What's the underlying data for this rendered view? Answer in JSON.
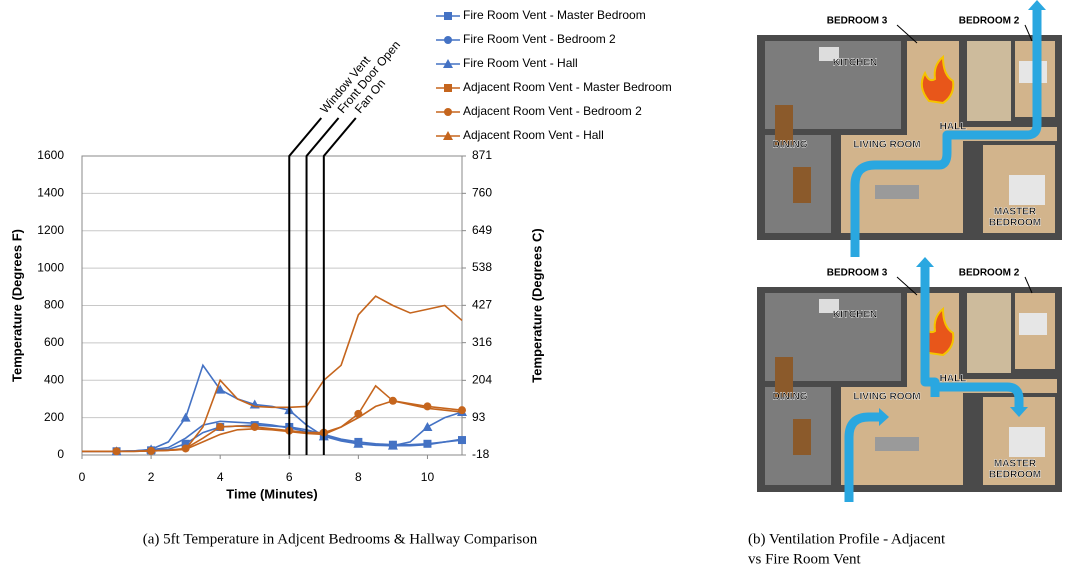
{
  "chart_data": {
    "type": "line",
    "xlabel": "Time (Minutes)",
    "ylabel": "Temperature (Degrees F)",
    "y2label": "Temperature (Degrees C)",
    "x": [
      0,
      0.5,
      1,
      1.5,
      2,
      2.5,
      3,
      3.5,
      4,
      4.5,
      5,
      5.5,
      6,
      6.5,
      7,
      7.5,
      8,
      8.5,
      9,
      9.5,
      10,
      10.5,
      11
    ],
    "xlim": [
      0,
      11
    ],
    "xticks": [
      0,
      2,
      4,
      6,
      8,
      10
    ],
    "ylim": [
      0,
      1600
    ],
    "yticks": [
      0,
      200,
      400,
      600,
      800,
      1000,
      1200,
      1400,
      1600
    ],
    "y2lim": [
      -18,
      871
    ],
    "y2ticks": [
      -18,
      93,
      204,
      316,
      427,
      538,
      649,
      760,
      871
    ],
    "series": [
      {
        "name": "Fire Room Vent - Master Bedroom",
        "color": "#4472c4",
        "marker": "square",
        "values": [
          20,
          20,
          20,
          22,
          25,
          30,
          60,
          120,
          150,
          155,
          160,
          155,
          150,
          135,
          110,
          85,
          70,
          60,
          55,
          55,
          60,
          70,
          80
        ]
      },
      {
        "name": "Fire Room Vent - Bedroom 2",
        "color": "#4472c4",
        "marker": "circle",
        "values": [
          20,
          20,
          20,
          22,
          28,
          40,
          90,
          160,
          180,
          175,
          170,
          160,
          145,
          125,
          110,
          80,
          60,
          52,
          50,
          50,
          55,
          70,
          85
        ]
      },
      {
        "name": "Fire Room Vent - Hall",
        "color": "#4472c4",
        "marker": "triangle",
        "values": [
          20,
          20,
          20,
          22,
          30,
          70,
          200,
          480,
          350,
          300,
          270,
          260,
          240,
          160,
          100,
          75,
          60,
          55,
          50,
          70,
          150,
          200,
          230
        ]
      },
      {
        "name": "Adjacent Room Vent - Master Bedroom",
        "color": "#c5651d",
        "marker": "square",
        "values": [
          20,
          20,
          20,
          20,
          22,
          25,
          30,
          70,
          110,
          135,
          140,
          135,
          125,
          115,
          110,
          150,
          200,
          260,
          290,
          270,
          250,
          240,
          230
        ]
      },
      {
        "name": "Adjacent Room Vent - Bedroom 2",
        "color": "#c5651d",
        "marker": "circle",
        "values": [
          20,
          20,
          20,
          20,
          22,
          25,
          35,
          90,
          150,
          155,
          150,
          140,
          130,
          120,
          120,
          150,
          220,
          370,
          290,
          275,
          260,
          250,
          240
        ]
      },
      {
        "name": "Adjacent Room Vent - Hall",
        "color": "#c5651d",
        "marker": "triangle",
        "values": [
          20,
          20,
          20,
          20,
          22,
          25,
          30,
          150,
          400,
          300,
          260,
          255,
          255,
          260,
          400,
          480,
          750,
          850,
          800,
          760,
          780,
          800,
          720
        ]
      }
    ],
    "annotations": [
      {
        "x": 6,
        "label": "Window Vent"
      },
      {
        "x": 6.5,
        "label": "Front Door Open"
      },
      {
        "x": 7,
        "label": "Fan On"
      }
    ]
  },
  "captions": {
    "a": "(a) 5ft Temperature in Adjcent Bedrooms & Hallway Comparison",
    "b": [
      "(b) Ventilation Profile - Adjacent",
      "vs Fire Room Vent"
    ]
  },
  "floor_plans": [
    {
      "labels": [
        "BEDROOM 3",
        "BEDROOM 2",
        "KITCHEN",
        "HALL",
        "DINING",
        "LIVING ROOM",
        "MASTER",
        "BEDROOM"
      ]
    },
    {
      "labels": [
        "BEDROOM 3",
        "BEDROOM 2",
        "KITCHEN",
        "HALL",
        "DINING",
        "LIVING ROOM",
        "MASTER",
        "BEDROOM"
      ]
    }
  ]
}
